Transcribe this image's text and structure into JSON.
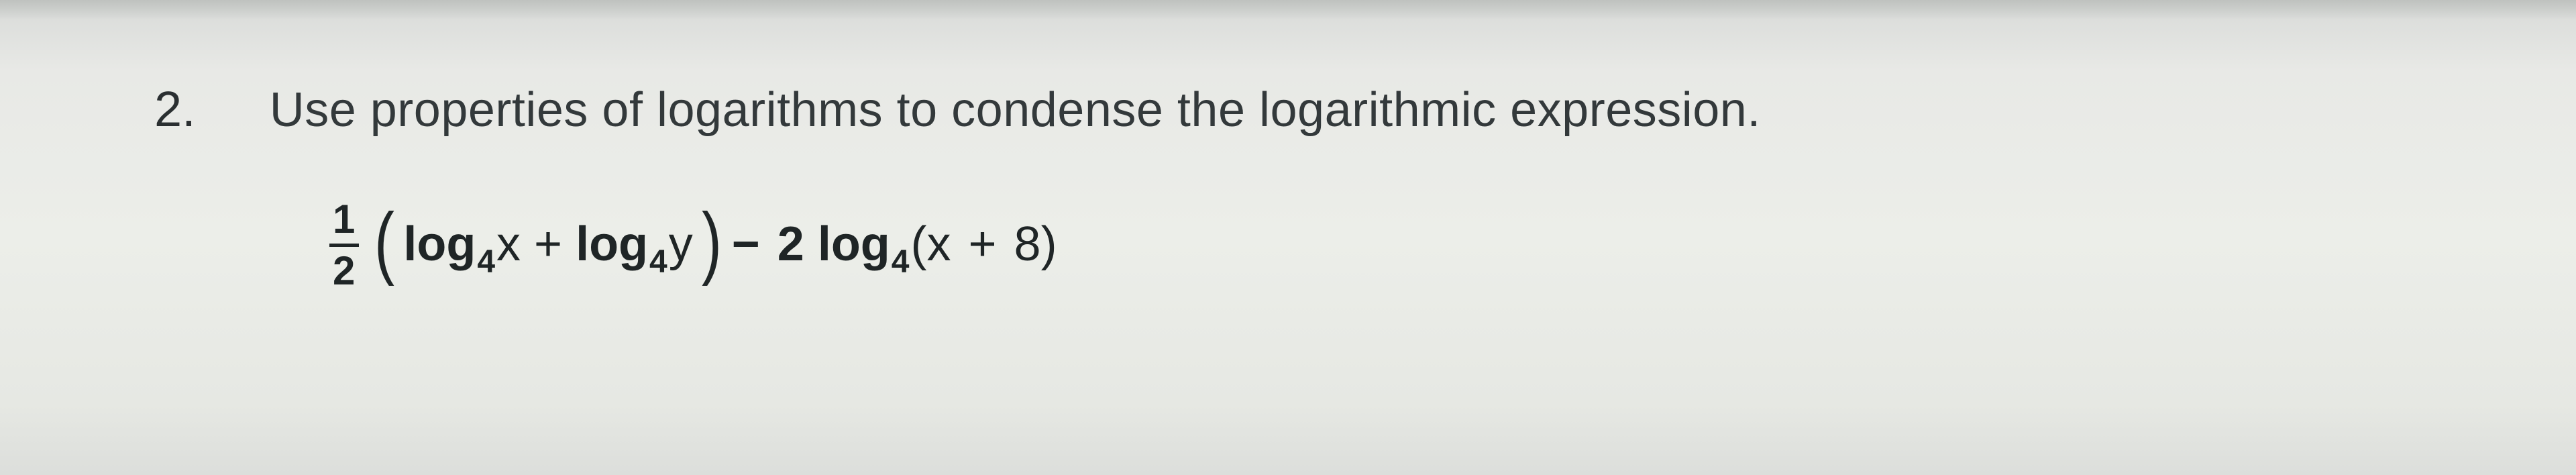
{
  "question": {
    "number": "2.",
    "prompt": "Use properties of logarithms to condense the logarithmic expression."
  },
  "expr": {
    "frac_num": "1",
    "frac_den": "2",
    "lparen": "(",
    "t1_log": "log",
    "t1_sub": "4",
    "t1_arg": "x",
    "plus": "+",
    "t2_log": "log",
    "t2_sub": "4",
    "t2_arg": "y",
    "rparen": ")",
    "minus": "−",
    "coef": "2",
    "t3_log": "log",
    "t3_sub": "4",
    "t3_lp": "(",
    "t3_a": "x",
    "t3_plus": "+",
    "t3_b": "8",
    "t3_rp": ")"
  }
}
